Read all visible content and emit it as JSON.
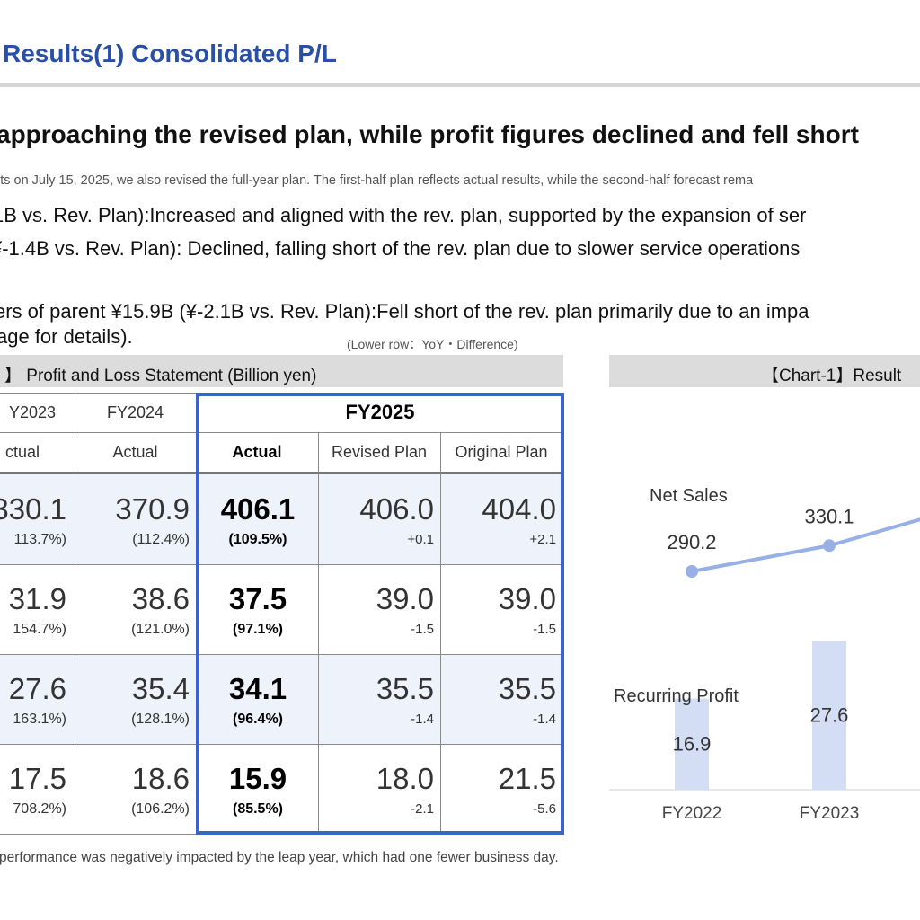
{
  "page": {
    "title": "Results(1) Consolidated P/L",
    "headline": "approaching the revised plan, while profit figures declined and fell short",
    "note": "lts on July 15, 2025, we also revised the full-year plan. The first-half plan reflects actual results, while the second-half forecast rema",
    "bullets": [
      "1B vs. Rev. Plan):Increased and aligned with the rev. plan, supported by the expansion of ser",
      "¥-1.4B vs. Rev. Plan): Declined, falling short of the rev. plan due to slower service operations",
      "ers of parent ¥15.9B (¥-2.1B vs. Rev. Plan):Fell short of the rev. plan primarily due to an impa",
      "age for details)."
    ],
    "lower_row_note": "(Lower row：YoY・Difference)",
    "footnote": " performance was negatively impacted by the leap year, which had one fewer business day."
  },
  "pl_table": {
    "title": "】 Profit and Loss Statement (Billion yen)",
    "col_years": [
      "Y2023",
      "FY2024",
      "FY2025"
    ],
    "col_sub": [
      "ctual",
      "Actual",
      "Actual",
      "Revised Plan",
      "Original Plan"
    ],
    "rows": [
      {
        "cells": [
          {
            "v": "330.1",
            "s": "113.7%)"
          },
          {
            "v": "370.9",
            "s": "(112.4%)"
          },
          {
            "v": "406.1",
            "s": "(109.5%)"
          },
          {
            "v": "406.0",
            "s": "+0.1"
          },
          {
            "v": "404.0",
            "s": "+2.1"
          }
        ]
      },
      {
        "cells": [
          {
            "v": "31.9",
            "s": "154.7%)"
          },
          {
            "v": "38.6",
            "s": "(121.0%)"
          },
          {
            "v": "37.5",
            "s": "(97.1%)"
          },
          {
            "v": "39.0",
            "s": "-1.5"
          },
          {
            "v": "39.0",
            "s": "-1.5"
          }
        ]
      },
      {
        "cells": [
          {
            "v": "27.6",
            "s": "163.1%)"
          },
          {
            "v": "35.4",
            "s": "(128.1%)"
          },
          {
            "v": "34.1",
            "s": "(96.4%)"
          },
          {
            "v": "35.5",
            "s": "-1.4"
          },
          {
            "v": "35.5",
            "s": "-1.4"
          }
        ]
      },
      {
        "cells": [
          {
            "v": "17.5",
            "s": "708.2%)"
          },
          {
            "v": "18.6",
            "s": "(106.2%)"
          },
          {
            "v": "15.9",
            "s": "(85.5%)"
          },
          {
            "v": "18.0",
            "s": "-2.1"
          },
          {
            "v": "21.5",
            "s": "-5.6"
          }
        ]
      }
    ]
  },
  "chart": {
    "title": "【Chart-1】Result",
    "line_series_name": "Net Sales",
    "bar_series_name": "Recurring Profit",
    "line_color": "#97b0e6",
    "bar_color": "#d3def5"
  },
  "chart_data": {
    "type": "bar",
    "categories": [
      "FY2022",
      "FY2023"
    ],
    "series": [
      {
        "name": "Net Sales",
        "type": "line",
        "values": [
          290.2,
          330.1
        ]
      },
      {
        "name": "Recurring Profit",
        "type": "bar",
        "values": [
          16.9,
          27.6
        ]
      }
    ],
    "title": "【Chart-1】Result",
    "xlabel": "",
    "ylabel": "",
    "grid": false
  }
}
